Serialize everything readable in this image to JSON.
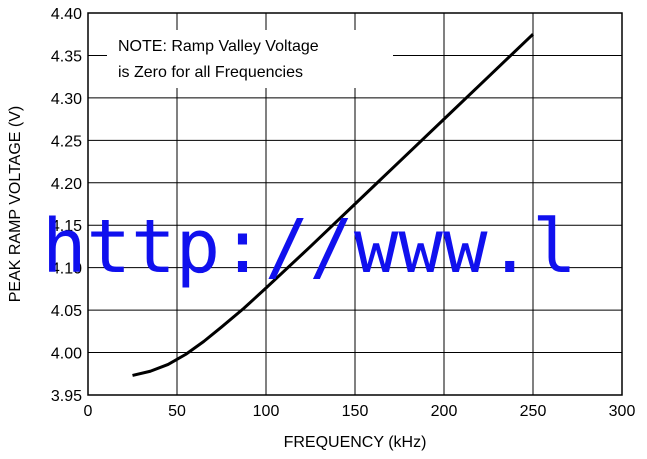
{
  "chart_data": {
    "type": "line",
    "x": [
      25,
      35,
      45,
      55,
      65,
      75,
      87.5,
      100,
      125,
      150,
      175,
      200,
      225,
      250
    ],
    "series": [
      {
        "name": "Peak Ramp Voltage",
        "color": "#000000",
        "values": [
          3.973,
          3.978,
          3.986,
          3.998,
          4.013,
          4.03,
          4.052,
          4.076,
          4.125,
          4.175,
          4.225,
          4.275,
          4.325,
          4.375
        ]
      }
    ],
    "xlim": [
      0,
      300
    ],
    "xticks": [
      0,
      50,
      100,
      150,
      200,
      250,
      300
    ],
    "ylim": [
      3.95,
      4.4
    ],
    "yticks": [
      {
        "value": 3.95,
        "label": "3.95"
      },
      {
        "value": 4.0,
        "label": "4.00"
      },
      {
        "value": 4.05,
        "label": "4.05"
      },
      {
        "value": 4.1,
        "label": "4.10"
      },
      {
        "value": 4.15,
        "label": "4.15"
      },
      {
        "value": 4.2,
        "label": "4.20"
      },
      {
        "value": 4.25,
        "label": "4.25"
      },
      {
        "value": 4.3,
        "label": "4.30"
      },
      {
        "value": 4.35,
        "label": "4.35"
      },
      {
        "value": 4.4,
        "label": "4.40"
      }
    ],
    "xlabel": "FREQUENCY (kHz)",
    "ylabel": "PEAK RAMP VOLTAGE (V)",
    "annotation": [
      "NOTE: Ramp Valley Voltage",
      "is Zero for all Frequencies"
    ],
    "grid": true,
    "watermark": "http://www.l"
  }
}
